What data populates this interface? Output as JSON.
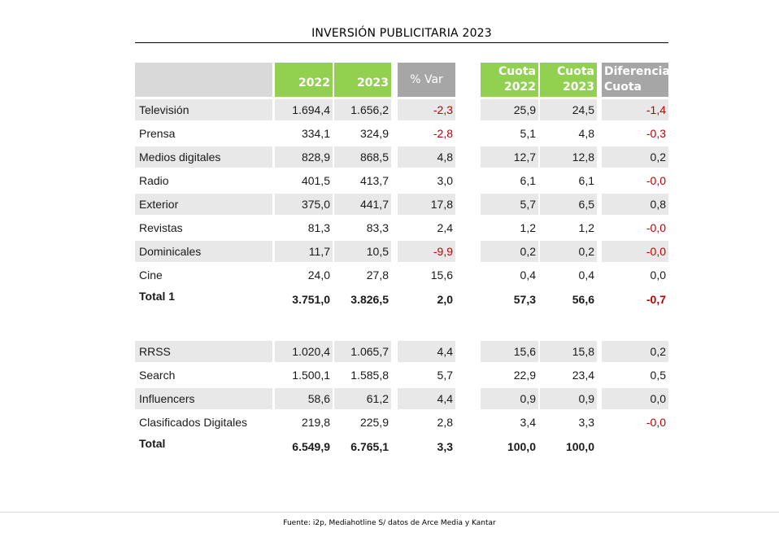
{
  "title": "INVERSIÓN PUBLICITARIA 2023",
  "headers": {
    "y2022": "2022",
    "y2023": "2023",
    "var": "% Var",
    "cuota2022_l1": "Cuota",
    "cuota2022_l2": "2022",
    "cuota2023_l1": "Cuota",
    "cuota2023_l2": "2023",
    "dif_l1": "Diferencia",
    "dif_l2": "Cuota"
  },
  "colors": {
    "header_green": "#92d050",
    "header_gray": "#a6a6a6",
    "negative": "#c00000",
    "row_shade": "#e8e8e8"
  },
  "group1": [
    {
      "label": "Televisión",
      "v2022": "1.694,4",
      "v2023": "1.656,2",
      "var": "-2,3",
      "c2022": "25,9",
      "c2023": "24,5",
      "dif": "-1,4"
    },
    {
      "label": "Prensa",
      "v2022": "334,1",
      "v2023": "324,9",
      "var": "-2,8",
      "c2022": "5,1",
      "c2023": "4,8",
      "dif": "-0,3"
    },
    {
      "label": "Medios digitales",
      "v2022": "828,9",
      "v2023": "868,5",
      "var": "4,8",
      "c2022": "12,7",
      "c2023": "12,8",
      "dif": "0,2"
    },
    {
      "label": "Radio",
      "v2022": "401,5",
      "v2023": "413,7",
      "var": "3,0",
      "c2022": "6,1",
      "c2023": "6,1",
      "dif": "-0,0"
    },
    {
      "label": "Exterior",
      "v2022": "375,0",
      "v2023": "441,7",
      "var": "17,8",
      "c2022": "5,7",
      "c2023": "6,5",
      "dif": "0,8"
    },
    {
      "label": "Revistas",
      "v2022": "81,3",
      "v2023": "83,3",
      "var": "2,4",
      "c2022": "1,2",
      "c2023": "1,2",
      "dif": "-0,0"
    },
    {
      "label": "Dominicales",
      "v2022": "11,7",
      "v2023": "10,5",
      "var": "-9,9",
      "c2022": "0,2",
      "c2023": "0,2",
      "dif": "-0,0"
    },
    {
      "label": "Cine",
      "v2022": "24,0",
      "v2023": "27,8",
      "var": "15,6",
      "c2022": "0,4",
      "c2023": "0,4",
      "dif": "0,0"
    }
  ],
  "total1": {
    "label": "Total 1",
    "v2022": "3.751,0",
    "v2023": "3.826,5",
    "var": "2,0",
    "c2022": "57,3",
    "c2023": "56,6",
    "dif": "-0,7"
  },
  "group2": [
    {
      "label": "RRSS",
      "v2022": "1.020,4",
      "v2023": "1.065,7",
      "var": "4,4",
      "c2022": "15,6",
      "c2023": "15,8",
      "dif": "0,2"
    },
    {
      "label": "Search",
      "v2022": "1.500,1",
      "v2023": "1.585,8",
      "var": "5,7",
      "c2022": "22,9",
      "c2023": "23,4",
      "dif": "0,5"
    },
    {
      "label": "Influencers",
      "v2022": "58,6",
      "v2023": "61,2",
      "var": "4,4",
      "c2022": "0,9",
      "c2023": "0,9",
      "dif": "0,0"
    },
    {
      "label": "Clasificados Digitales",
      "v2022": "219,8",
      "v2023": "225,9",
      "var": "2,8",
      "c2022": "3,4",
      "c2023": "3,3",
      "dif": "-0,0"
    }
  ],
  "total": {
    "label": "Total",
    "v2022": "6.549,9",
    "v2023": "6.765,1",
    "var": "3,3",
    "c2022": "100,0",
    "c2023": "100,0",
    "dif": ""
  },
  "footer": "Fuente: i2p, Mediahotline  S/ datos de Arce Media y Kantar"
}
